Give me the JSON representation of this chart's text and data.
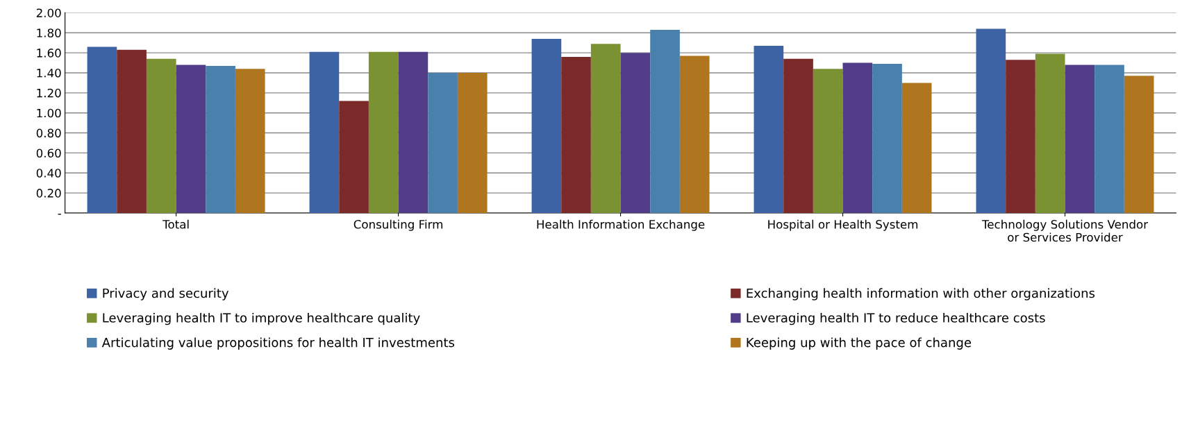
{
  "chart_data": {
    "type": "bar",
    "categories": [
      "Total",
      "Consulting Firm",
      "Health Information Exchange",
      "Hospital or Health System",
      "Technology Solutions Vendor\nor Services Provider"
    ],
    "series": [
      {
        "name": "Privacy and security",
        "color": "#3d63a5",
        "values": [
          1.66,
          1.61,
          1.74,
          1.67,
          1.84
        ]
      },
      {
        "name": "Exchanging health information with other organizations",
        "color": "#7b2a2a",
        "values": [
          1.63,
          1.12,
          1.56,
          1.54,
          1.53
        ]
      },
      {
        "name": "Leveraging health IT to improve healthcare quality",
        "color": "#7a9232",
        "values": [
          1.54,
          1.61,
          1.69,
          1.44,
          1.59
        ]
      },
      {
        "name": "Leveraging health IT to reduce healthcare costs",
        "color": "#503c87",
        "values": [
          1.48,
          1.61,
          1.6,
          1.5,
          1.48
        ]
      },
      {
        "name": "Articulating value propositions for health IT investments",
        "color": "#4a80ad",
        "values": [
          1.47,
          1.4,
          1.83,
          1.49,
          1.48
        ]
      },
      {
        "name": "Keeping up with the pace of change",
        "color": "#b0761f",
        "values": [
          1.44,
          1.4,
          1.57,
          1.3,
          1.37
        ]
      }
    ],
    "ylim": [
      0,
      2.0
    ],
    "yticks": [
      {
        "value": 0,
        "label": "-"
      },
      {
        "value": 0.2,
        "label": "0.20"
      },
      {
        "value": 0.4,
        "label": "0.40"
      },
      {
        "value": 0.6,
        "label": "0.60"
      },
      {
        "value": 0.8,
        "label": "0.80"
      },
      {
        "value": 1.0,
        "label": "1.00"
      },
      {
        "value": 1.2,
        "label": "1.20"
      },
      {
        "value": 1.4,
        "label": "1.40"
      },
      {
        "value": 1.6,
        "label": "1.60"
      },
      {
        "value": 1.8,
        "label": "1.80"
      },
      {
        "value": 2.0,
        "label": "2.00"
      }
    ],
    "grid": "y",
    "legend": "bottom"
  }
}
